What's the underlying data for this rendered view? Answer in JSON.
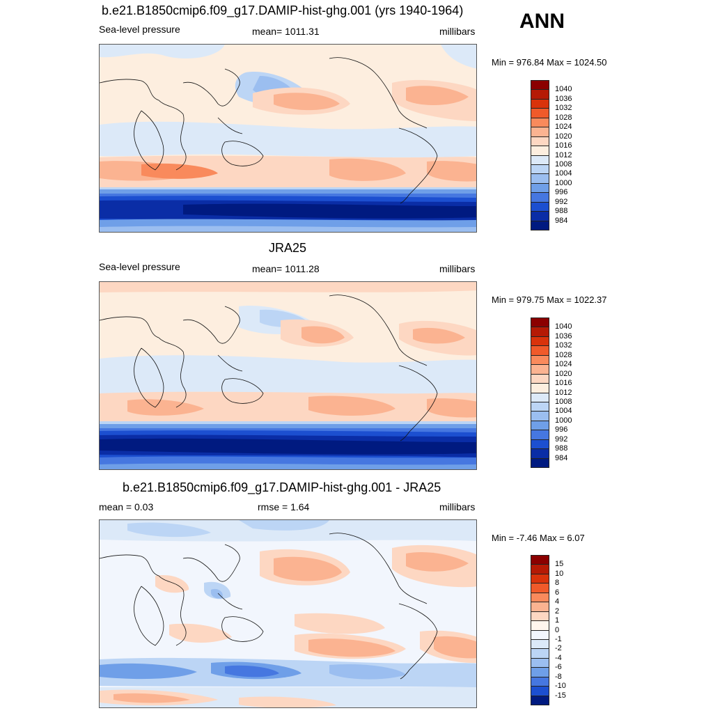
{
  "header": {
    "season": "ANN"
  },
  "panels": [
    {
      "id": "model",
      "title": "b.e21.B1850cmip6.f09_g17.DAMIP-hist-ghg.001 (yrs 1940-1964)",
      "left_label": "Sea-level pressure",
      "center_label": "mean= 1011.31",
      "right_label": "millibars",
      "minmax": "Min = 976.84 Max = 1024.50",
      "colorbar": {
        "levels": [
          "1040",
          "1036",
          "1032",
          "1028",
          "1024",
          "1020",
          "1016",
          "1012",
          "1008",
          "1004",
          "1000",
          "996",
          "992",
          "988",
          "984"
        ],
        "colors": [
          "#8b0000",
          "#b51a05",
          "#d9330b",
          "#f05a2a",
          "#f98a5c",
          "#fbb391",
          "#fdd7c2",
          "#fdeedf",
          "#dce9f8",
          "#bcd5f5",
          "#9bbef0",
          "#6f9fe8",
          "#4677e0",
          "#1c4fd0",
          "#0a2da6",
          "#001a80"
        ]
      }
    },
    {
      "id": "obs",
      "title": "JRA25",
      "left_label": "Sea-level pressure",
      "center_label": "mean= 1011.28",
      "right_label": "millibars",
      "minmax": "Min = 979.75 Max = 1022.37",
      "colorbar": {
        "levels": [
          "1040",
          "1036",
          "1032",
          "1028",
          "1024",
          "1020",
          "1016",
          "1012",
          "1008",
          "1004",
          "1000",
          "996",
          "992",
          "988",
          "984"
        ],
        "colors": [
          "#8b0000",
          "#b51a05",
          "#d9330b",
          "#f05a2a",
          "#f98a5c",
          "#fbb391",
          "#fdd7c2",
          "#fdeedf",
          "#dce9f8",
          "#bcd5f5",
          "#9bbef0",
          "#6f9fe8",
          "#4677e0",
          "#1c4fd0",
          "#0a2da6",
          "#001a80"
        ]
      }
    },
    {
      "id": "diff",
      "title": "b.e21.B1850cmip6.f09_g17.DAMIP-hist-ghg.001 - JRA25",
      "left_label": "mean =   0.03",
      "center_label": "rmse =   1.64",
      "right_label": "millibars",
      "minmax": "Min =  -7.46 Max =   6.07",
      "colorbar": {
        "levels": [
          "15",
          "10",
          "8",
          "6",
          "4",
          "2",
          "1",
          "0",
          "-1",
          "-2",
          "-4",
          "-6",
          "-8",
          "-10",
          "-15"
        ],
        "colors": [
          "#8b0000",
          "#b51a05",
          "#d9330b",
          "#f05a2a",
          "#f98a5c",
          "#fbb391",
          "#fdd7c2",
          "#fff5ee",
          "#f2f6fd",
          "#dce9f8",
          "#bcd5f5",
          "#9bbef0",
          "#6f9fe8",
          "#4677e0",
          "#1c4fd0",
          "#001a80"
        ]
      }
    }
  ]
}
